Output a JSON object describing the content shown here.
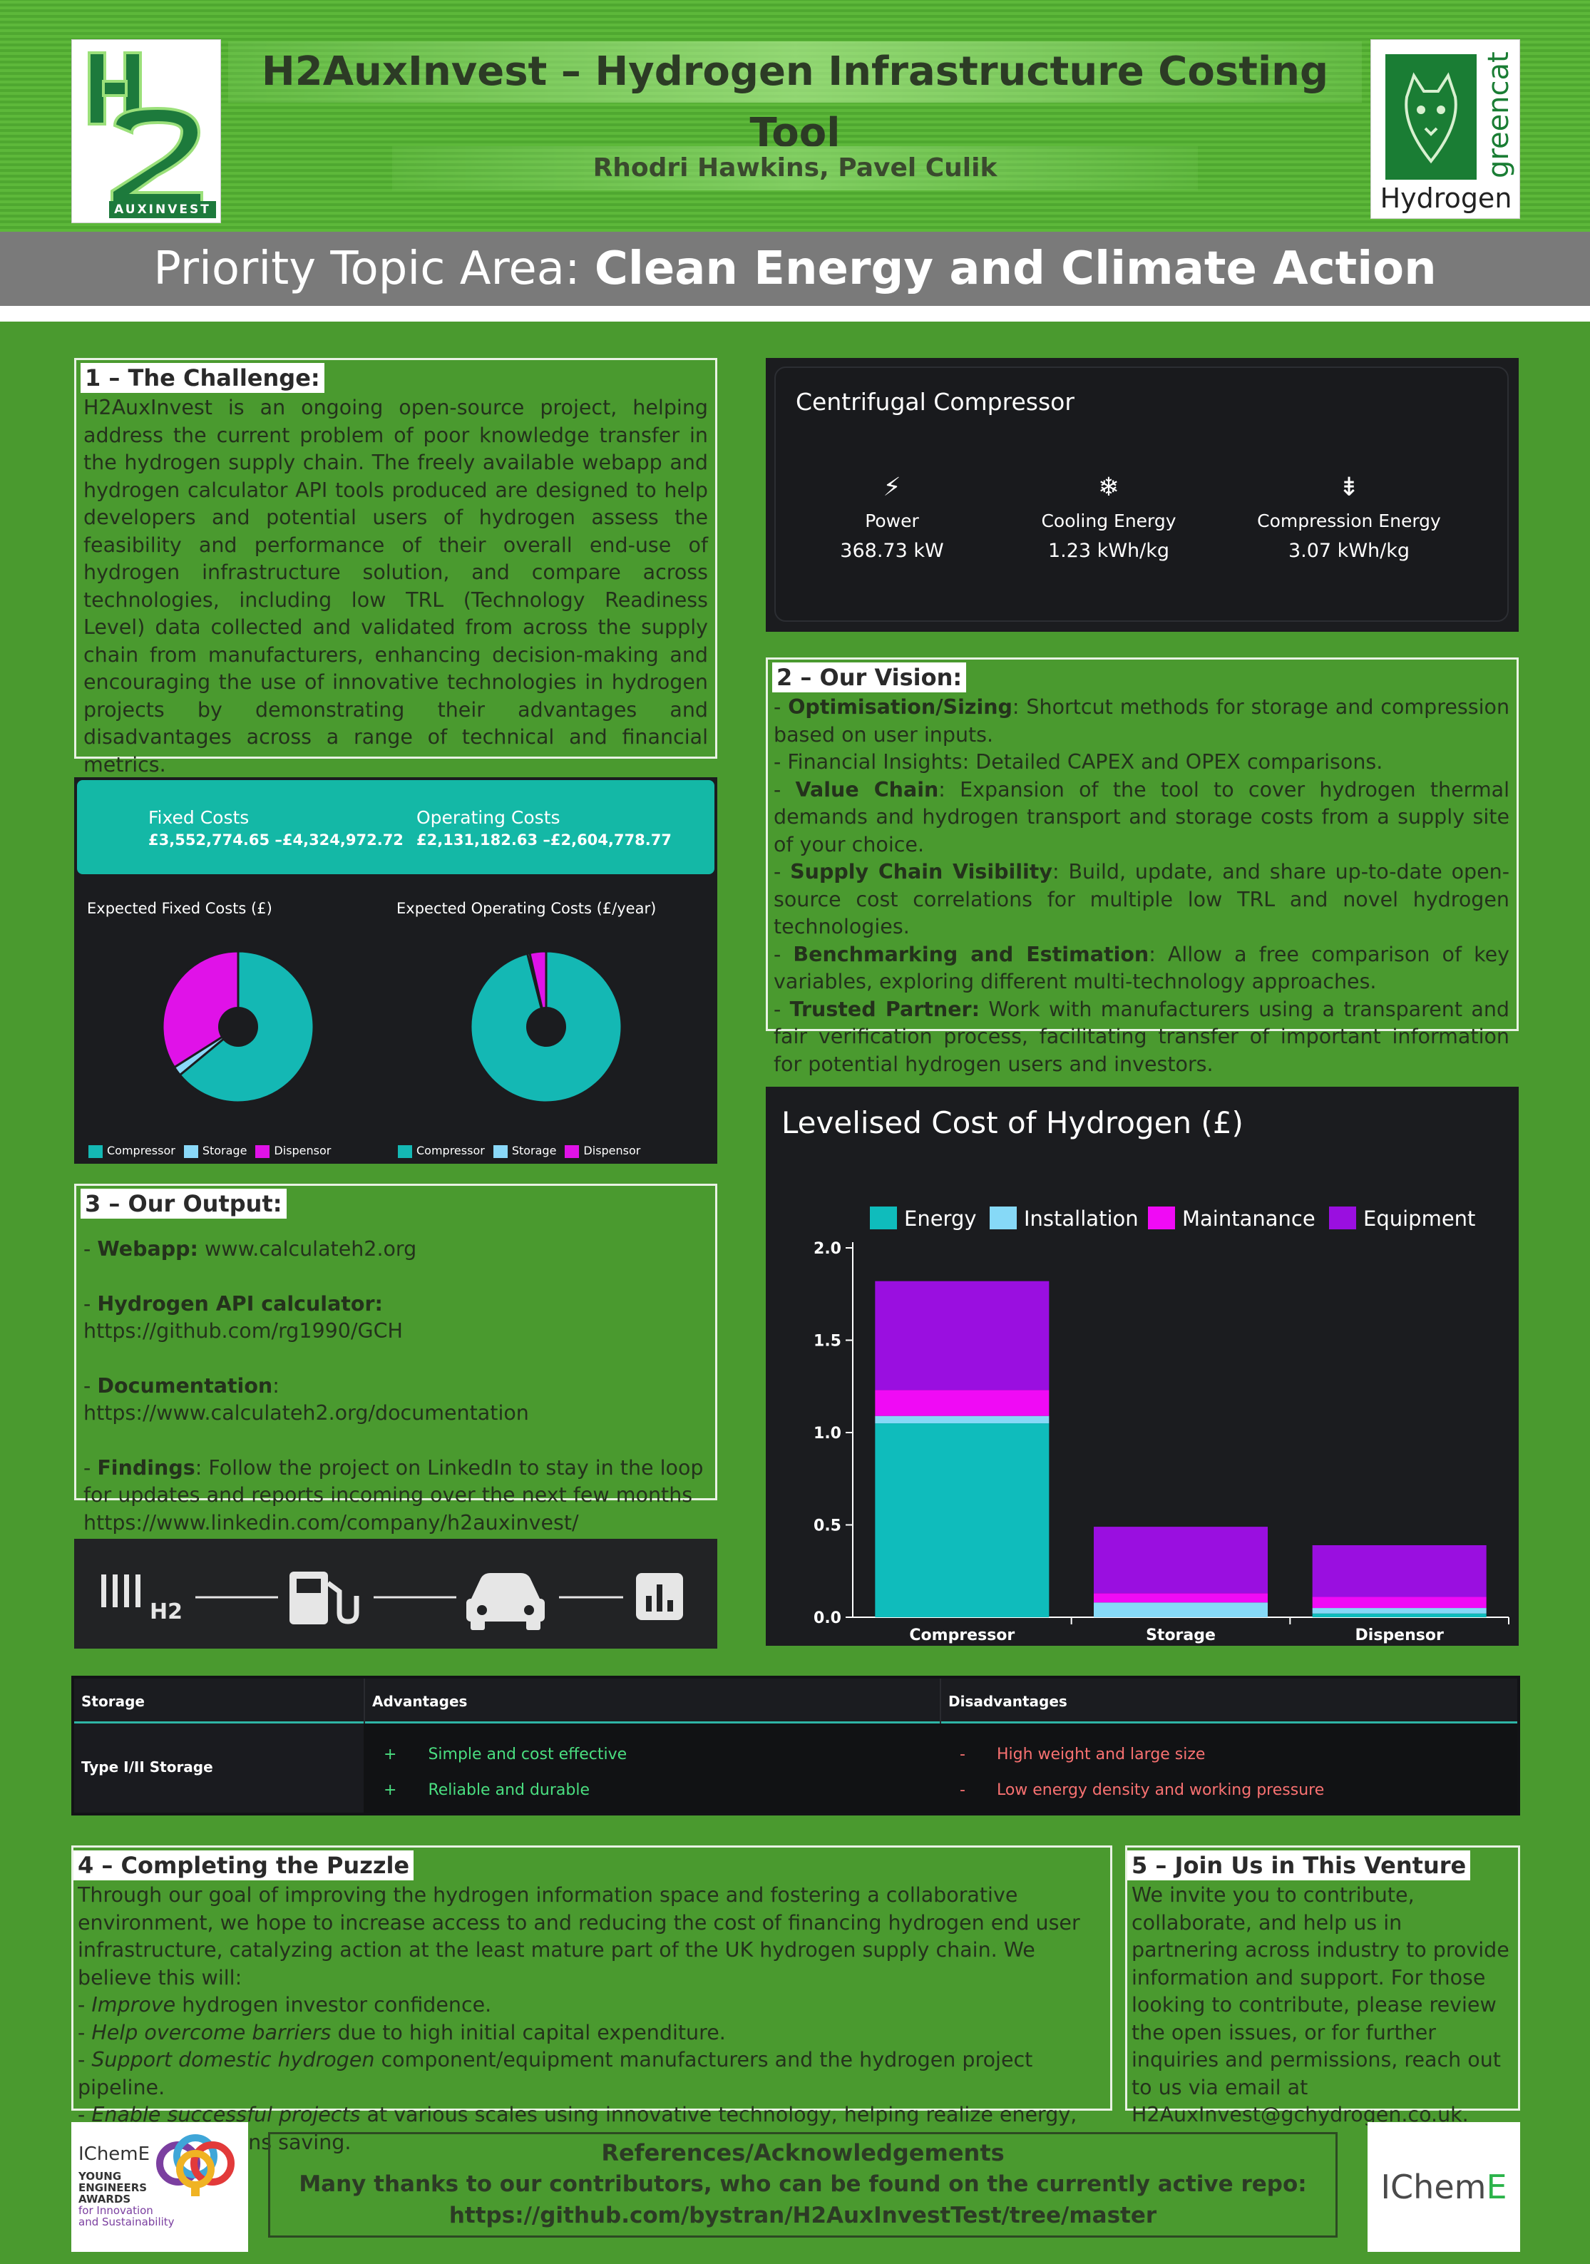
{
  "header": {
    "title": "H2AuxInvest – Hydrogen Infrastructure Costing Tool",
    "authors": "Rhodri Hawkins, Pavel Culik",
    "logo_left_label": "AUXINVEST",
    "logo_right_brand": "greencat",
    "logo_right_sub": "Hydrogen"
  },
  "priority": {
    "prefix": "Priority Topic Area: ",
    "topic": "Clean Energy and Climate Action"
  },
  "challenge": {
    "title": "1 – The Challenge:",
    "body": "H2AuxInvest is an ongoing open-source project, helping address the current problem of poor knowledge transfer in the hydrogen supply chain. The freely available webapp and hydrogen calculator API tools produced are designed to help developers and potential users of hydrogen assess the feasibility and performance of their overall end-use of hydrogen infrastructure solution, and compare across technologies, including low TRL (Technology Readiness Level) data collected and validated from across the supply chain from manufacturers, enhancing decision-making and encouraging the use of innovative technologies in hydrogen projects by demonstrating their advantages and disadvantages across a range of technical and financial metrics."
  },
  "compressor_card": {
    "title": "Centrifugal Compressor",
    "metrics": [
      {
        "icon": "bolt-icon",
        "label": "Power",
        "value": "368.73 kW"
      },
      {
        "icon": "snowflake-icon",
        "label": "Cooling Energy",
        "value": "1.23 kWh/kg"
      },
      {
        "icon": "compress-icon",
        "label": "Compression Energy",
        "value": "3.07 kWh/kg"
      }
    ]
  },
  "vision": {
    "title": "2 – Our Vision:",
    "items": [
      {
        "bold": "Optimisation/Sizing",
        "text": ": Shortcut methods for storage and compression based on user inputs."
      },
      {
        "bold": "",
        "text": "Financial Insights: Detailed CAPEX and OPEX comparisons."
      },
      {
        "bold": "Value Chain",
        "text": ": Expansion of the tool to cover hydrogen thermal demands and hydrogen transport and storage costs from a supply site of your choice."
      },
      {
        "bold": "Supply Chain Visibility",
        "text": ": Build, update, and share up-to-date open-source cost correlations for multiple low TRL and novel hydrogen technologies."
      },
      {
        "bold": "Benchmarking and Estimation",
        "text": ": Allow a free comparison of key variables, exploring different multi-technology approaches."
      },
      {
        "bold": "Trusted Partner:",
        "text": " Work with manufacturers using a transparent and fair verification process, facilitating transfer of important information for potential hydrogen users and investors."
      }
    ]
  },
  "costs_card": {
    "fixed_label": "Fixed Costs",
    "fixed_value": "£3,552,774.65 –£4,324,972.72",
    "operating_label": "Operating Costs",
    "operating_value": "£2,131,182.63 –£2,604,778.77",
    "fixed_chart_title": "Expected Fixed Costs (£)",
    "operating_chart_title": "Expected Operating Costs (£/year)",
    "legend": [
      "Compressor",
      "Storage",
      "Dispensor"
    ]
  },
  "output": {
    "title": "3 – Our Output:",
    "items": [
      {
        "bold": "Webapp:",
        "text": " www.calculateh2.org"
      },
      {
        "bold": "Hydrogen API calculator:",
        "text": " https://github.com/rg1990/GCH"
      },
      {
        "bold": "Documentation",
        "text": ": https://www.calculateh2.org/documentation"
      },
      {
        "bold": "Findings",
        "text": ": Follow the project on LinkedIn to stay in the loop for updates and reports incoming over the next few months https://www.linkedin.com/company/h2auxinvest/"
      }
    ]
  },
  "process_strip": {
    "h2_label": "H2"
  },
  "chart_data": [
    {
      "type": "pie",
      "title": "Expected Fixed Costs (£)",
      "categories": [
        "Compressor",
        "Storage",
        "Dispensor"
      ],
      "values": [
        64,
        2,
        34
      ],
      "colors": [
        "#14b8b4",
        "#8ad8f8",
        "#e012e8"
      ],
      "donut": true,
      "legend": "bottom"
    },
    {
      "type": "pie",
      "title": "Expected Operating Costs (£/year)",
      "categories": [
        "Compressor",
        "Storage",
        "Dispensor"
      ],
      "values": [
        96,
        0.5,
        3.5
      ],
      "colors": [
        "#14b8b4",
        "#8ad8f8",
        "#e012e8"
      ],
      "donut": true,
      "legend": "bottom"
    },
    {
      "type": "bar",
      "stacked": true,
      "title": "Levelised Cost of Hydrogen (£)",
      "categories": [
        "Compressor",
        "Storage",
        "Dispensor"
      ],
      "series": [
        {
          "name": "Energy",
          "values": [
            1.05,
            0.0,
            0.02
          ],
          "color": "#0fbcbc"
        },
        {
          "name": "Installation",
          "values": [
            0.04,
            0.08,
            0.03
          ],
          "color": "#86d9f7"
        },
        {
          "name": "Maintanance",
          "values": [
            0.14,
            0.05,
            0.06
          ],
          "color": "#f00af5"
        },
        {
          "name": "Equipment",
          "values": [
            0.59,
            0.36,
            0.28
          ],
          "color": "#9a0fe0"
        }
      ],
      "ylim": [
        0,
        2.0
      ],
      "yticks": [
        "0.0",
        "0.5",
        "1.0",
        "1.5",
        "2.0"
      ],
      "legend": "top"
    }
  ],
  "storage_table": {
    "headers": [
      "Storage",
      "Advantages",
      "Disadvantages"
    ],
    "row_label": "Type I/II Storage",
    "advantages": [
      "Simple and cost effective",
      "Reliable and durable"
    ],
    "disadvantages": [
      "High weight and large size",
      "Low energy density and working pressure"
    ],
    "plus": "+",
    "minus": "-"
  },
  "puzzle": {
    "title": "4 – Completing the Puzzle",
    "intro": "Through our goal of improving the hydrogen information space and fostering a collaborative environment, we hope to increase access to and reducing the cost of financing hydrogen end user infrastructure, catalyzing action at the least mature part of the UK hydrogen supply chain. We believe this will:",
    "items": [
      {
        "italic": "Improve",
        "text": " hydrogen investor confidence."
      },
      {
        "italic": "Help overcome barriers",
        "text": " due to high initial capital expenditure."
      },
      {
        "italic": "Support domestic hydrogen",
        "text": " component/equipment manufacturers and the hydrogen project pipeline."
      },
      {
        "italic": "Enable successful projects",
        "text": " at various scales using innovative technology, helping realize energy, cost and emissions saving."
      }
    ]
  },
  "join": {
    "title": "5 – Join Us in This Venture",
    "body": "We invite you to contribute, collaborate, and help us in partnering across industry to provide information and support. For those looking to contribute, please review the open issues, or for further inquiries and permissions, reach out to us via email at H2AuxInvest@gchydrogen.co.uk."
  },
  "references": {
    "title": "References/Acknowledgements",
    "line1": "Many thanks to our contributors, who can be found on the currently active repo:",
    "line2": "https://github.com/bystran/H2AuxInvestTest/tree/master"
  },
  "footer_logos": {
    "left_brand": "IChemE",
    "left_lines": [
      "YOUNG",
      "ENGINEERS",
      "AWARDS",
      "for Innovation",
      "and Sustainability"
    ],
    "right_brand_a": "IChem",
    "right_brand_b": "E"
  },
  "colors": {
    "background": "#4a9a2f",
    "dark_panel": "#1b1c1f",
    "teal": "#14b8a6"
  }
}
